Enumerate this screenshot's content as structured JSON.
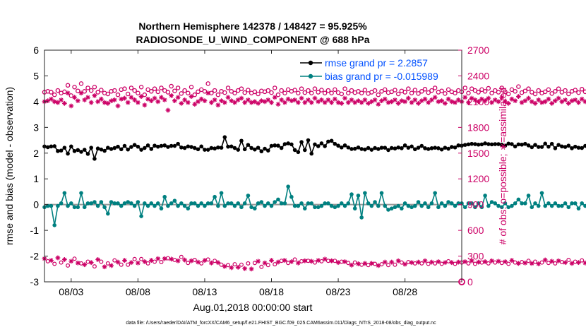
{
  "chart_data": {
    "type": "line",
    "title": "Northern Hemisphere 142378 / 148427 = 95.925%",
    "subtitle": "RADIOSONDE_U_WIND_COMPONENT @ 688 hPa",
    "xlabel": "Aug.01,2018 00:00:00 start",
    "ylabel": "rmse and bias (model - observation)",
    "ylabel_right": "# of obs: o=possible; ∗=assimilated",
    "footer": "data file: /Users/raeder/DAI/ATM_forcXX/CAM6_setup/f.e21.FHIST_BGC.f09_025.CAM6assim.011/Diags_NTrS_2018-08/obs_diag_output.nc",
    "xlim": [
      1.0,
      32.25
    ],
    "ylim": [
      -3,
      6
    ],
    "ylim_right": [
      0,
      2700
    ],
    "x_ticks": [
      3,
      8,
      13,
      18,
      23,
      28
    ],
    "x_tick_labels": [
      "08/03",
      "08/08",
      "08/13",
      "08/18",
      "08/23",
      "08/28"
    ],
    "y_ticks": [
      -3,
      -2,
      -1,
      0,
      1,
      2,
      3,
      4,
      5,
      6
    ],
    "y_tick_labels": [
      "-3",
      "-2",
      "-1",
      "0",
      "1",
      "2",
      "3",
      "4",
      "5",
      "6"
    ],
    "y_ticks_right": [
      0,
      300,
      600,
      900,
      1200,
      1500,
      1800,
      2100,
      2400,
      2700
    ],
    "y_tick_labels_right": [
      "0",
      "300",
      "600",
      "900",
      "1200",
      "1500",
      "1800",
      "2100",
      "2400",
      "2700"
    ],
    "legend_position": "top-right",
    "x_start": 1.0,
    "x_step": 0.25,
    "series": [
      {
        "name": "rmse grand pr = 2.2857",
        "color": "#000000",
        "marker": "dot",
        "axis": "left",
        "values": [
          2.26,
          2.23,
          2.26,
          2.27,
          2.08,
          2.1,
          2.21,
          1.98,
          2.26,
          2.08,
          2.12,
          2.05,
          2.13,
          1.97,
          2.21,
          1.78,
          2.18,
          2.14,
          2.09,
          2.21,
          2.16,
          2.2,
          2.25,
          2.15,
          2.28,
          2.14,
          2.24,
          2.32,
          2.25,
          2.13,
          2.2,
          2.3,
          2.16,
          2.29,
          2.25,
          2.28,
          2.3,
          2.24,
          2.28,
          2.28,
          2.36,
          2.22,
          2.2,
          2.26,
          2.24,
          2.2,
          2.15,
          2.26,
          2.13,
          2.13,
          2.2,
          2.18,
          2.22,
          2.21,
          2.62,
          2.25,
          2.26,
          2.2,
          2.13,
          2.48,
          2.15,
          2.32,
          2.2,
          2.14,
          2.21,
          2.07,
          2.17,
          2.1,
          2.28,
          2.3,
          2.29,
          2.2,
          2.35,
          2.38,
          2.34,
          2.12,
          2.04,
          2.43,
          2.12,
          2.5,
          1.98,
          2.34,
          2.27,
          2.38,
          2.27,
          2.45,
          2.48,
          2.36,
          2.29,
          2.22,
          2.3,
          2.22,
          2.16,
          2.17,
          2.22,
          2.16,
          2.14,
          2.2,
          2.13,
          2.2,
          2.16,
          2.21,
          2.21,
          2.12,
          2.2,
          2.18,
          2.22,
          2.19,
          2.3,
          2.21,
          2.26,
          2.15,
          2.21,
          2.28,
          2.19,
          2.16,
          2.19,
          2.21,
          2.19,
          2.14,
          2.21,
          2.17,
          2.24,
          2.22,
          2.3,
          2.29,
          2.32,
          2.34,
          2.36,
          2.35,
          2.33,
          2.34,
          2.38,
          2.35,
          2.34,
          2.35,
          2.35,
          2.33,
          2.29,
          2.37,
          2.35,
          2.26,
          2.34,
          2.33,
          2.36,
          2.3,
          2.23,
          2.32,
          2.24,
          2.24,
          2.37,
          2.25,
          2.36,
          2.19,
          2.32,
          2.26,
          2.24,
          2.29,
          2.19,
          2.25,
          2.21,
          2.2,
          2.28,
          2.19,
          2.27,
          2.25,
          2.28,
          2.24,
          2.3,
          2.3,
          2.31,
          2.21,
          2.18,
          2.41,
          2.23,
          2.52,
          2.3,
          2.67
        ]
      },
      {
        "name": "bias grand pr = -0.015989",
        "color": "#008080",
        "marker": "dot",
        "axis": "left",
        "values": [
          -0.1,
          -0.05,
          -0.05,
          -0.8,
          -0.05,
          0.05,
          0.45,
          -0.05,
          0.05,
          -0.1,
          -0.1,
          0.45,
          -0.1,
          0.05,
          0.05,
          0.1,
          -0.05,
          0.1,
          -0.1,
          -0.35,
          0.1,
          0.05,
          0.05,
          -0.05,
          0.05,
          0.1,
          0.05,
          -0.05,
          0.1,
          -0.45,
          0.05,
          -0.05,
          0.05,
          -0.05,
          0.05,
          -0.15,
          0.3,
          -0.05,
          0.05,
          0.15,
          -0.05,
          0.05,
          -0.05,
          -0.15,
          0.05,
          0.05,
          -0.05,
          0.05,
          -0.05,
          0.05,
          0.05,
          0.3,
          -0.05,
          0.45,
          -0.05,
          0.05,
          0.05,
          -0.05,
          0.05,
          -0.1,
          0.05,
          0.35,
          -0.1,
          -0.15,
          0.05,
          0.1,
          -0.05,
          0.05,
          -0.05,
          0.1,
          0.2,
          0.05,
          0.05,
          0.7,
          0.3,
          -0.05,
          -0.05,
          0.05,
          -0.15,
          0.05,
          0.05,
          -0.1,
          -0.1,
          -0.05,
          0.05,
          0.05,
          -0.05,
          -0.1,
          -0.05,
          0.05,
          -0.05,
          0.05,
          0.4,
          -0.15,
          0.35,
          -0.5,
          0.45,
          0.05,
          -0.05,
          0.1,
          -0.05,
          0.45,
          -0.05,
          -0.2,
          -0.15,
          -0.1,
          -0.05,
          -0.15,
          0.05,
          -0.05,
          -0.1,
          -0.05,
          0.1,
          -0.05,
          0.05,
          -0.1,
          0.05,
          0.45,
          -0.1,
          0.05,
          -0.05,
          0.1,
          0.05,
          -0.05,
          0.05,
          0.05,
          -0.1,
          0.05,
          0.05,
          -0.1,
          0.05,
          -0.1,
          0.35,
          -0.05,
          0.1,
          0.05,
          -0.05,
          -0.1,
          0.05,
          -0.1,
          -0.05,
          0.05,
          0.2,
          0.05,
          0.05,
          0.35,
          -0.1,
          0.05,
          -0.05,
          0.45,
          -0.05,
          0.05,
          -0.05,
          0.05,
          -0.05,
          -0.05,
          0.05,
          -0.1,
          0.05,
          0.05,
          -0.15,
          0.05,
          -0.05,
          -0.05,
          -0.2,
          0.05,
          -0.05,
          0.05,
          0.45,
          0.05,
          -0.1,
          0.05,
          -0.1,
          0.05,
          0.45,
          -0.05,
          -0.55
        ]
      }
    ],
    "obs_series": [
      {
        "name": "possible",
        "marker": "o",
        "color": "#cc0066",
        "axis": "right",
        "values": [
          2210,
          2220,
          2210,
          2180,
          2230,
          2200,
          2215,
          2290,
          2170,
          2270,
          2225,
          2310,
          2220,
          2260,
          2230,
          2270,
          2210,
          2235,
          2200,
          2190,
          2220,
          2230,
          2180,
          2240,
          2250,
          2190,
          2260,
          2230,
          2200,
          2270,
          2180,
          2240,
          2220,
          2250,
          2215,
          2260,
          2230,
          2210,
          2280,
          2225,
          2260,
          2195,
          2230,
          2200,
          2270,
          2180,
          2215,
          2240,
          2220,
          2310,
          2200,
          2230,
          2180,
          2220,
          2205,
          2260,
          2220,
          2200,
          2230,
          2250,
          2205,
          2235,
          2200,
          2215,
          2190,
          2225,
          2215,
          2230,
          2205,
          2260,
          2180,
          2230,
          2200,
          2240,
          2220,
          2235,
          2200,
          2250,
          2205,
          2230,
          2200,
          2250,
          2210,
          2235,
          2200,
          2230,
          2200,
          2240,
          2205,
          2190,
          2250,
          2200,
          2230,
          2205,
          2220,
          2200,
          2235,
          2195,
          2210,
          2230,
          2180,
          2220,
          2240,
          2205,
          2215,
          2235,
          2190,
          2225,
          2210,
          2250,
          2200,
          2235,
          2195,
          2220,
          2245,
          2205,
          2230,
          2260,
          2210,
          2225,
          2195,
          2240,
          2215,
          2200,
          2230,
          2215,
          2260,
          2200,
          2250,
          2230,
          2210,
          2240,
          2220,
          2255,
          2200,
          2230,
          2210,
          2260,
          2215,
          2190,
          2240,
          2220,
          2275,
          2205,
          2225,
          2250,
          2210,
          2190,
          2230,
          2200,
          2215,
          2240,
          2195,
          2220,
          2250,
          2210,
          2230,
          2190,
          2220,
          2235,
          2205,
          2245,
          2215,
          2195,
          2260,
          2220,
          2240,
          2210,
          2230,
          2200,
          2250,
          2225,
          2205,
          2240,
          2220,
          2260,
          2180,
          2000
        ]
      },
      {
        "name": "assimilated",
        "marker": "*",
        "color": "#cc0066",
        "axis": "right",
        "values": [
          2100,
          2110,
          2130,
          2100,
          2090,
          2120,
          2080,
          2200,
          2050,
          2150,
          2110,
          2200,
          2120,
          2150,
          2090,
          2170,
          2100,
          2130,
          2090,
          2080,
          2110,
          2120,
          2050,
          2130,
          2140,
          2090,
          2150,
          2120,
          2090,
          2160,
          2060,
          2130,
          2110,
          2140,
          2100,
          2150,
          2120,
          2000,
          2170,
          2110,
          2150,
          2080,
          2120,
          2090,
          2160,
          2070,
          2100,
          2130,
          2110,
          2200,
          2090,
          2120,
          2060,
          2110,
          2090,
          2150,
          2110,
          2090,
          2120,
          2140,
          2090,
          2120,
          2090,
          2100,
          2080,
          2110,
          2100,
          2120,
          2090,
          2150,
          2070,
          2120,
          2090,
          2130,
          2110,
          2120,
          2090,
          2140,
          2090,
          2120,
          2090,
          2140,
          2100,
          2120,
          2090,
          2120,
          2090,
          2130,
          2090,
          2080,
          2140,
          2090,
          2120,
          2090,
          2110,
          2090,
          2120,
          2080,
          2100,
          2120,
          2070,
          2110,
          2130,
          2090,
          2100,
          2120,
          2080,
          2110,
          2100,
          2140,
          2090,
          2120,
          2080,
          2110,
          2130,
          2090,
          2120,
          2150,
          2100,
          2110,
          2080,
          2130,
          2100,
          2090,
          2120,
          2100,
          2150,
          2090,
          2140,
          2120,
          2100,
          2130,
          2110,
          2140,
          2090,
          2120,
          2100,
          2150,
          2100,
          2080,
          2130,
          2110,
          2160,
          2090,
          2110,
          2140,
          2100,
          2080,
          2120,
          2090,
          2100,
          2130,
          2080,
          2110,
          2140,
          2100,
          2120,
          2080,
          2110,
          2120,
          2090,
          2130,
          2100,
          2080,
          2150,
          2110,
          2130,
          2100,
          2120,
          2090,
          2140,
          2110,
          2090,
          2130,
          2110,
          2150,
          2070,
          2080
        ]
      }
    ],
    "bottom_series": {
      "name": "near-zero obs",
      "color": "#cc0066",
      "axis": "right",
      "values": [
        270,
        240,
        250,
        210,
        280,
        225,
        260,
        190,
        240,
        270,
        220,
        215,
        200,
        235,
        225,
        180,
        260,
        235,
        175,
        215,
        190,
        250,
        230,
        200,
        250,
        200,
        225,
        265,
        220,
        265,
        235,
        215,
        250,
        235,
        270,
        230,
        270,
        275,
        265,
        255,
        245,
        290,
        255,
        220,
        245,
        255,
        230,
        215,
        250,
        260,
        220,
        245,
        225,
        200,
        180,
        195,
        165,
        205,
        170,
        200,
        155,
        215,
        150,
        220,
        240,
        175,
        220,
        195,
        250,
        205,
        230,
        245,
        250,
        220,
        235,
        260,
        220,
        240,
        245,
        245,
        240,
        225,
        250,
        240,
        265,
        245,
        245,
        245,
        225,
        235,
        235,
        220,
        195,
        225,
        210,
        200,
        215,
        195,
        215,
        210,
        190,
        205,
        230,
        195,
        230,
        200,
        245,
        225,
        205,
        230,
        225,
        215,
        230,
        215,
        245,
        210,
        230,
        215,
        235,
        210,
        225,
        240,
        225,
        210,
        230,
        225,
        235,
        215,
        245,
        210,
        230,
        225,
        235,
        215,
        245,
        225,
        240,
        220,
        235,
        210,
        250,
        225,
        215,
        230,
        220,
        245,
        215,
        235,
        210,
        225,
        255,
        220,
        240,
        215,
        245,
        230,
        225,
        255,
        215,
        235,
        225,
        250,
        220,
        240,
        230,
        245,
        235,
        225,
        215,
        230,
        215,
        240,
        210,
        225,
        200,
        230,
        215,
        215,
        210,
        195
      ]
    },
    "zero_line_color": "#999999",
    "end_marker_value": 0
  }
}
